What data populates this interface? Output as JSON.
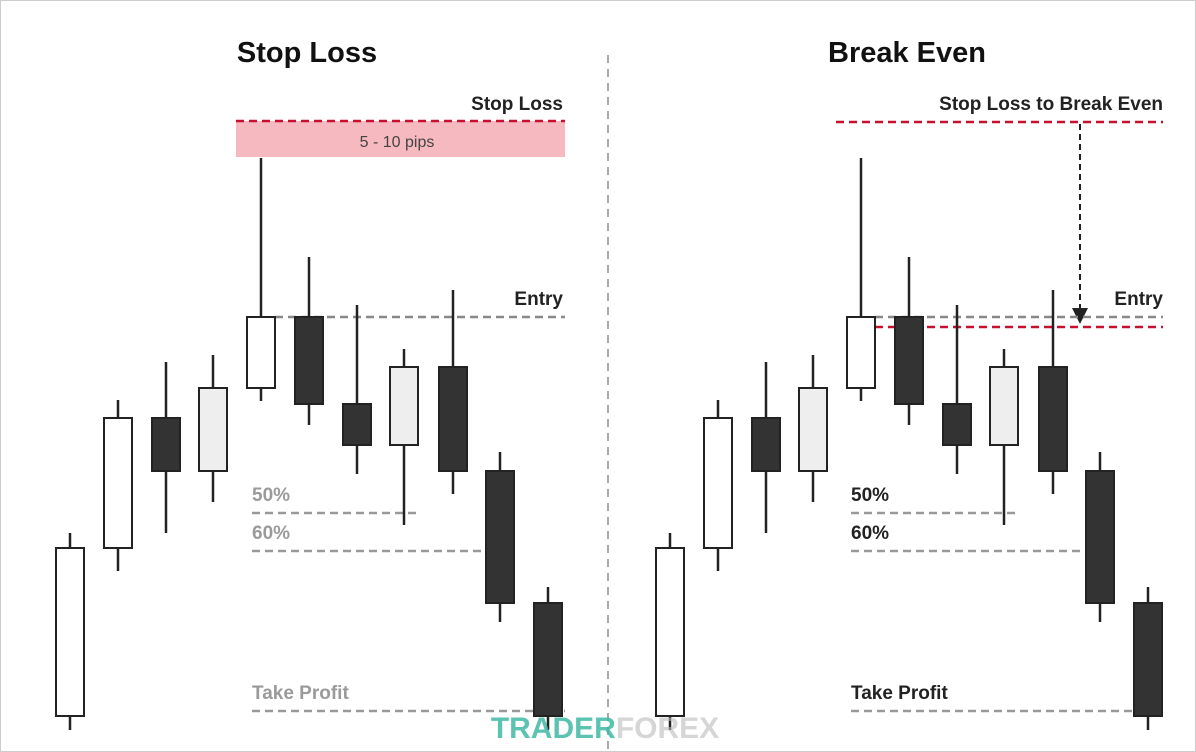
{
  "left": {
    "title": "Stop Loss",
    "stop_label": "Stop Loss",
    "pips_label": "5 - 10 pips",
    "entry_label": "Entry",
    "fib_50": "50%",
    "fib_60": "60%",
    "tp_label": "Take Profit"
  },
  "right": {
    "title": "Break Even",
    "stop_label": "Stop Loss to Break Even",
    "entry_label": "Entry",
    "fib_50": "50%",
    "fib_60": "60%",
    "tp_label": "Take Profit"
  },
  "watermark": {
    "part1": "TRADER",
    "part2": "FOREX"
  }
}
